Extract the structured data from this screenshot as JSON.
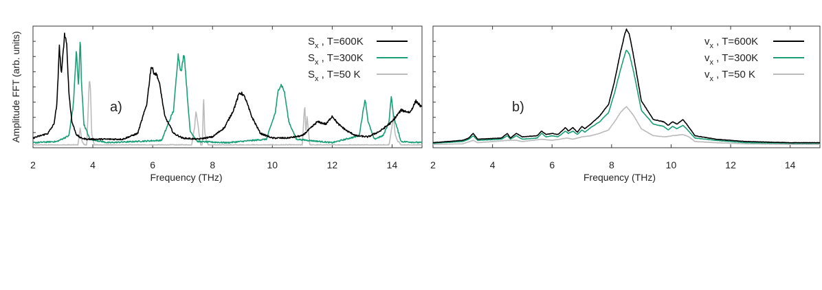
{
  "figure": {
    "background": "#ffffff"
  },
  "chart_data": [
    {
      "type": "line",
      "panel_label": "a)",
      "xlabel": "Frequency (THz)",
      "ylabel": "Amplitude FFT (arb. units)",
      "xlim": [
        2,
        15
      ],
      "ylim": [
        0,
        1
      ],
      "xticks": [
        2,
        4,
        6,
        8,
        10,
        12,
        14
      ],
      "xtick_labels": [
        "2",
        "4",
        "6",
        "8",
        "10",
        "12",
        "14"
      ],
      "yticks_labeled": false,
      "grid": false,
      "legend_position": "top-right",
      "series": [
        {
          "name_main": "S",
          "name_sub": "x",
          "name_rest": " , T=600K",
          "color": "#000000",
          "x": [
            2.0,
            2.5,
            2.7,
            2.8,
            2.88,
            2.95,
            3.05,
            3.12,
            3.2,
            3.3,
            3.45,
            3.6,
            3.8,
            4.0,
            5.0,
            5.5,
            5.8,
            5.95,
            6.05,
            6.15,
            6.25,
            6.4,
            6.7,
            7.0,
            7.5,
            8.0,
            8.4,
            8.7,
            8.9,
            9.0,
            9.1,
            9.3,
            9.6,
            10.0,
            10.5,
            11.0,
            11.3,
            11.5,
            11.8,
            12.0,
            12.2,
            12.5,
            12.8,
            13.2,
            13.6,
            14.0,
            14.3,
            14.6,
            14.8,
            15.0
          ],
          "y": [
            0.06,
            0.1,
            0.18,
            0.35,
            0.85,
            0.6,
            0.95,
            0.9,
            0.45,
            0.2,
            0.09,
            0.06,
            0.05,
            0.05,
            0.05,
            0.1,
            0.35,
            0.68,
            0.62,
            0.6,
            0.5,
            0.25,
            0.1,
            0.06,
            0.05,
            0.07,
            0.15,
            0.3,
            0.45,
            0.44,
            0.4,
            0.25,
            0.1,
            0.06,
            0.06,
            0.08,
            0.15,
            0.2,
            0.18,
            0.25,
            0.18,
            0.12,
            0.08,
            0.07,
            0.12,
            0.2,
            0.3,
            0.28,
            0.38,
            0.32
          ]
        },
        {
          "name_main": "S",
          "name_sub": "x",
          "name_rest": " , T=300K",
          "color": "#1a9e77",
          "x": [
            2.0,
            2.8,
            3.2,
            3.35,
            3.45,
            3.52,
            3.58,
            3.62,
            3.7,
            3.9,
            4.5,
            6.3,
            6.7,
            6.85,
            6.95,
            7.05,
            7.15,
            7.25,
            7.5,
            8.5,
            9.8,
            10.1,
            10.2,
            10.3,
            10.4,
            10.55,
            10.8,
            12.0,
            12.9,
            13.05,
            13.1,
            13.2,
            13.4,
            13.7,
            13.9,
            13.97,
            14.05,
            14.3,
            15.0
          ],
          "y": [
            0.02,
            0.03,
            0.08,
            0.35,
            0.82,
            0.5,
            0.92,
            0.55,
            0.18,
            0.05,
            0.02,
            0.04,
            0.3,
            0.78,
            0.62,
            0.8,
            0.45,
            0.12,
            0.03,
            0.02,
            0.05,
            0.28,
            0.48,
            0.52,
            0.46,
            0.2,
            0.05,
            0.02,
            0.08,
            0.32,
            0.4,
            0.2,
            0.05,
            0.08,
            0.2,
            0.42,
            0.25,
            0.03,
            0.02
          ]
        },
        {
          "name_main": "S",
          "name_sub": "x",
          "name_rest": " , T=50  K",
          "color": "#bbbbbb",
          "x": [
            2.0,
            3.5,
            3.58,
            3.62,
            3.7,
            3.8,
            3.88,
            3.92,
            3.96,
            4.05,
            7.3,
            7.4,
            7.45,
            7.5,
            7.6,
            7.66,
            7.7,
            7.74,
            7.85,
            11.0,
            11.08,
            11.12,
            11.16,
            11.25,
            13.9,
            14.05,
            14.1,
            14.15,
            14.3,
            15.0
          ],
          "y": [
            0.0,
            0.0,
            0.15,
            0.05,
            0.0,
            0.0,
            0.55,
            0.5,
            0.1,
            0.0,
            0.0,
            0.15,
            0.3,
            0.2,
            0.0,
            0.0,
            0.45,
            0.1,
            0.0,
            0.0,
            0.35,
            0.1,
            0.25,
            0.0,
            0.0,
            0.25,
            0.1,
            0.05,
            0.0,
            0.0
          ]
        }
      ]
    },
    {
      "type": "line",
      "panel_label": "b)",
      "xlabel": "Frequency (THz)",
      "ylabel": "",
      "xlim": [
        2,
        15
      ],
      "ylim": [
        0,
        1
      ],
      "xticks": [
        2,
        4,
        6,
        8,
        10,
        12,
        14
      ],
      "xtick_labels": [
        "2",
        "4",
        "6",
        "8",
        "10",
        "12",
        "14"
      ],
      "yticks_labeled": false,
      "grid": false,
      "legend_position": "top-right",
      "series": [
        {
          "name_main": "v",
          "name_sub": "x",
          "name_rest": " , T=600K",
          "color": "#000000",
          "x": [
            2.0,
            3.0,
            3.2,
            3.35,
            3.5,
            4.3,
            4.5,
            4.6,
            4.8,
            5.0,
            5.5,
            5.65,
            5.8,
            6.0,
            6.2,
            6.45,
            6.55,
            6.7,
            6.85,
            7.0,
            7.1,
            7.3,
            7.6,
            7.9,
            8.1,
            8.3,
            8.45,
            8.5,
            8.6,
            8.75,
            9.0,
            9.4,
            9.75,
            9.9,
            10.05,
            10.2,
            10.4,
            10.55,
            10.8,
            11.5,
            12.5,
            14.0,
            15.0
          ],
          "y": [
            0.02,
            0.04,
            0.06,
            0.1,
            0.05,
            0.06,
            0.1,
            0.06,
            0.1,
            0.07,
            0.08,
            0.12,
            0.09,
            0.1,
            0.09,
            0.15,
            0.12,
            0.15,
            0.11,
            0.16,
            0.14,
            0.18,
            0.25,
            0.35,
            0.55,
            0.8,
            0.96,
            1.0,
            0.95,
            0.75,
            0.38,
            0.22,
            0.2,
            0.17,
            0.2,
            0.18,
            0.22,
            0.17,
            0.08,
            0.05,
            0.03,
            0.02,
            0.02
          ]
        },
        {
          "name_main": "v",
          "name_sub": "x",
          "name_rest": " , T=300K",
          "color": "#1a9e77",
          "x": [
            2.0,
            3.0,
            3.2,
            3.35,
            3.5,
            4.3,
            4.5,
            4.6,
            4.8,
            5.0,
            5.5,
            5.65,
            5.8,
            6.0,
            6.2,
            6.45,
            6.55,
            6.7,
            6.85,
            7.0,
            7.1,
            7.3,
            7.6,
            7.9,
            8.1,
            8.3,
            8.45,
            8.5,
            8.6,
            8.75,
            9.0,
            9.4,
            9.75,
            9.9,
            10.05,
            10.2,
            10.4,
            10.55,
            10.8,
            11.5,
            12.5,
            14.0,
            15.0
          ],
          "y": [
            0.015,
            0.03,
            0.05,
            0.08,
            0.04,
            0.05,
            0.08,
            0.05,
            0.08,
            0.05,
            0.06,
            0.1,
            0.07,
            0.08,
            0.07,
            0.12,
            0.1,
            0.12,
            0.09,
            0.13,
            0.11,
            0.15,
            0.2,
            0.28,
            0.45,
            0.65,
            0.78,
            0.82,
            0.78,
            0.62,
            0.3,
            0.18,
            0.16,
            0.13,
            0.16,
            0.14,
            0.17,
            0.13,
            0.06,
            0.04,
            0.02,
            0.015,
            0.015
          ]
        },
        {
          "name_main": "v",
          "name_sub": "x",
          "name_rest": " , T=50  K",
          "color": "#bbbbbb",
          "x": [
            2.0,
            3.0,
            3.35,
            3.5,
            4.5,
            4.8,
            5.0,
            5.65,
            6.0,
            6.5,
            6.7,
            7.0,
            7.3,
            7.6,
            7.9,
            8.1,
            8.3,
            8.45,
            8.5,
            8.6,
            8.75,
            9.0,
            9.4,
            9.8,
            10.05,
            10.4,
            10.6,
            10.8,
            11.5,
            12.5,
            14.0,
            15.0
          ],
          "y": [
            0.005,
            0.01,
            0.04,
            0.02,
            0.04,
            0.04,
            0.03,
            0.05,
            0.04,
            0.06,
            0.05,
            0.07,
            0.08,
            0.1,
            0.13,
            0.2,
            0.28,
            0.32,
            0.33,
            0.3,
            0.25,
            0.14,
            0.08,
            0.07,
            0.08,
            0.09,
            0.07,
            0.03,
            0.02,
            0.01,
            0.005,
            0.005
          ]
        }
      ]
    }
  ]
}
